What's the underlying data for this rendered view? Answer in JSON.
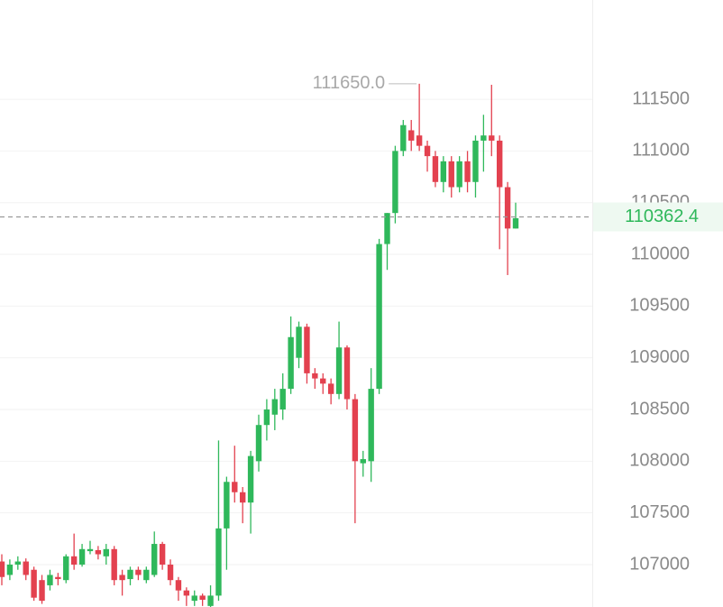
{
  "chart_data": {
    "type": "candlestick",
    "up_color": "#2fb85b",
    "down_color": "#e3414f",
    "ylim": [
      106590,
      112460
    ],
    "yticks": [
      107000,
      107500,
      108000,
      108500,
      109000,
      109500,
      110000,
      110500,
      111000,
      111500
    ],
    "grid": true,
    "last_price": 110362.4,
    "max_marker": {
      "value": 111650,
      "label": "111650.0"
    },
    "open": [
      107030,
      106900,
      107000,
      107030,
      106950,
      106850,
      106800,
      106880,
      106850,
      107080,
      107000,
      107130,
      107140,
      107080,
      107150,
      106900,
      106860,
      106950,
      106850,
      106900,
      107200,
      107000,
      106850,
      106750,
      106650,
      106700,
      106600,
      106700,
      107350,
      107800,
      107700,
      107600,
      108000,
      108350,
      108450,
      108500,
      108700,
      109000,
      109300,
      108850,
      108800,
      108750,
      108650,
      109100,
      108600,
      107980,
      108000,
      108700,
      110100,
      110400,
      111000,
      111200,
      111150,
      111050,
      110950,
      110700,
      110900,
      110650,
      110900,
      110700,
      111100,
      111150,
      111100,
      110650,
      110250
    ],
    "high": [
      107100,
      107050,
      107080,
      107060,
      106980,
      106900,
      106950,
      106920,
      107100,
      107300,
      107200,
      107230,
      107180,
      107200,
      107180,
      106950,
      106980,
      106980,
      106980,
      107320,
      107220,
      107050,
      106880,
      106780,
      106750,
      106720,
      106800,
      108200,
      107850,
      108150,
      107750,
      108100,
      108450,
      108600,
      108700,
      108850,
      109400,
      109350,
      109330,
      108900,
      108850,
      108800,
      109350,
      109120,
      108650,
      108100,
      108900,
      110150,
      110400,
      111050,
      111300,
      111300,
      111650,
      111100,
      111000,
      110950,
      110950,
      110950,
      111000,
      111150,
      111350,
      111640,
      111150,
      110700,
      110500
    ],
    "low": [
      106800,
      106850,
      106950,
      106850,
      106650,
      106620,
      106750,
      106800,
      106820,
      106950,
      106980,
      107100,
      107050,
      107000,
      106800,
      106700,
      106800,
      106850,
      106820,
      106880,
      106950,
      106800,
      106650,
      106600,
      106600,
      106600,
      106590,
      106650,
      106950,
      107600,
      107400,
      107300,
      107900,
      108200,
      108300,
      108400,
      108650,
      108900,
      108750,
      108700,
      108650,
      108550,
      108600,
      108500,
      107400,
      107850,
      107800,
      108650,
      109850,
      110300,
      110950,
      111000,
      111000,
      110800,
      110650,
      110600,
      110550,
      110600,
      110600,
      110550,
      110800,
      110950,
      110050,
      109800,
      110250
    ],
    "close": [
      106880,
      107000,
      107030,
      106900,
      106680,
      106650,
      106900,
      106860,
      107080,
      107000,
      107150,
      107150,
      107100,
      107150,
      106850,
      106850,
      106950,
      106900,
      106950,
      107200,
      107000,
      106850,
      106750,
      106700,
      106700,
      106660,
      106700,
      107350,
      107800,
      107700,
      107600,
      108050,
      108350,
      108500,
      108600,
      108700,
      109200,
      109300,
      108850,
      108800,
      108750,
      108650,
      109100,
      108600,
      108000,
      108020,
      108700,
      110100,
      110400,
      111000,
      111250,
      111100,
      111050,
      110950,
      110700,
      110900,
      110650,
      110900,
      110700,
      111100,
      111150,
      111100,
      110650,
      110250,
      110350
    ]
  }
}
